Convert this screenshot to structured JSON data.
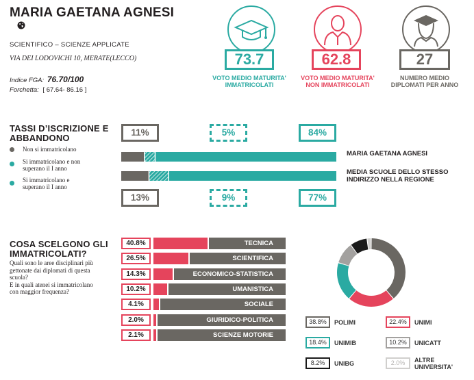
{
  "school": {
    "name": "MARIA GAETANA AGNESI",
    "track": "SCIENTIFICO – SCIENZE APPLICATE",
    "address": "VIA DEI LODOVICHI 10, MERATE(LECCO)",
    "fga_label": "Indice FGA:",
    "fga_value": "76.70/100",
    "range_label": "Forchetta:",
    "range_value": "[ 67.64- 86.16 ]"
  },
  "stats": [
    {
      "value": "73.7",
      "label_1": "VOTO MEDIO MATURITA'",
      "label_2": "IMMATRICOLATI",
      "color": "#2aaaa2",
      "icon": "graduation-cap-icon"
    },
    {
      "value": "62.8",
      "label_1": "VOTO MEDIO MATURITA'",
      "label_2": "NON IMMATRICOLATI",
      "color": "#e5445c",
      "icon": "person-icon"
    },
    {
      "value": "27",
      "label_1": "NUMERO MEDIO",
      "label_2": "DIPLOMATI PER ANNO",
      "color": "#6a6762",
      "icon": "graduate-icon"
    }
  ],
  "enrollment": {
    "title_1": "TASSI D’ISCRIZIONE E",
    "title_2": "ABBANDONO",
    "legend": [
      {
        "line_1": "Non si immatricolano",
        "line_2": "",
        "color": "#6a6762"
      },
      {
        "line_1": "Si immatricolano e non",
        "line_2": "superano il I anno",
        "color": "#2aaaa2"
      },
      {
        "line_1": "Si immatricolano e",
        "line_2": "superano il I anno",
        "color": "#2aaaa2"
      }
    ],
    "school_pcts": [
      "11%",
      "5%",
      "84%"
    ],
    "region_pcts": [
      "13%",
      "9%",
      "77%"
    ],
    "school_bar_label": "MARIA GAETANA AGNESI",
    "region_bar_label_1": "MEDIA SCUOLE DELLO STESSO",
    "region_bar_label_2": "INDIRIZZO NELLA REGIONE",
    "school_values": [
      11,
      5,
      84
    ],
    "region_values": [
      13,
      9,
      77
    ],
    "colors": {
      "gray": "#6a6762",
      "teal": "#2aaaa2"
    }
  },
  "choices": {
    "title_1": "COSA SCELGONO GLI",
    "title_2": "IMMATRICOLATI?",
    "desc_1": "Quali sono le aree disciplinari più",
    "desc_2": "gettonate dai diplomati di questa",
    "desc_3": "scuola?",
    "desc_4": "E in quali atenei si immatricolano",
    "desc_5": "con maggior frequenza?",
    "areas": [
      {
        "pct": "40.8%",
        "value": 40.8,
        "name": "TECNICA"
      },
      {
        "pct": "26.5%",
        "value": 26.5,
        "name": "SCIENTIFICA"
      },
      {
        "pct": "14.3%",
        "value": 14.3,
        "name": "ECONOMICO-STATISTICA"
      },
      {
        "pct": "10.2%",
        "value": 10.2,
        "name": "UMANISTICA"
      },
      {
        "pct": "4.1%",
        "value": 4.1,
        "name": "SOCIALE"
      },
      {
        "pct": "2.0%",
        "value": 2.0,
        "name": "GIURIDICO-POLITICA"
      },
      {
        "pct": "2.1%",
        "value": 2.1,
        "name": "SCIENZE MOTORIE"
      }
    ]
  },
  "universities": [
    {
      "pct": "38.8%",
      "value": 38.8,
      "name_1": "POLIMI",
      "name_2": "",
      "color": "#6a6762"
    },
    {
      "pct": "22.4%",
      "value": 22.4,
      "name_1": "UNIMI",
      "name_2": "",
      "color": "#e5445c"
    },
    {
      "pct": "18.4%",
      "value": 18.4,
      "name_1": "UNIMIB",
      "name_2": "",
      "color": "#2aaaa2"
    },
    {
      "pct": "10.2%",
      "value": 10.2,
      "name_1": "UNICATT",
      "name_2": "",
      "color": "#a3a19f"
    },
    {
      "pct": "8.2%",
      "value": 8.2,
      "name_1": "UNIBG",
      "name_2": "",
      "color": "#1a1a1a"
    },
    {
      "pct": "2.0%",
      "value": 2.0,
      "name_1": "ALTRE",
      "name_2": "UNIVERSITA'",
      "color": "#d0cfcd"
    }
  ]
}
